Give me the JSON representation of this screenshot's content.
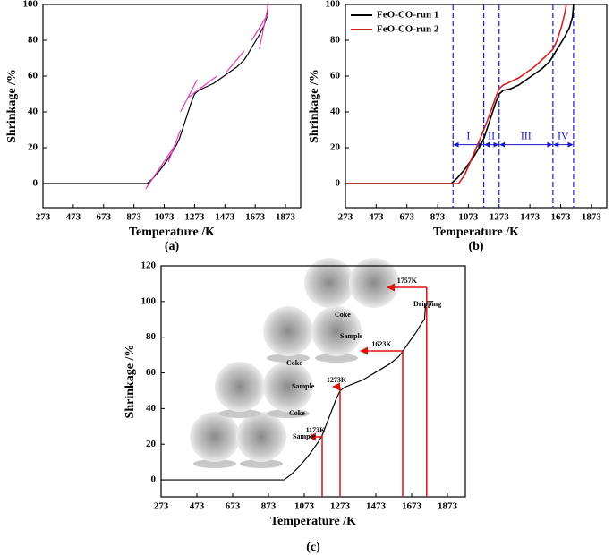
{
  "chart_data": [
    {
      "type": "line",
      "caption": "(a)",
      "x_label": "Temperature /K",
      "y_label": "Shrinkage /%",
      "xlim": [
        273,
        1973
      ],
      "xticks": [
        273,
        473,
        673,
        873,
        1073,
        1273,
        1473,
        1673,
        1873
      ],
      "ylim": [
        -13.5,
        100
      ],
      "yticks": [
        0,
        20,
        40,
        60,
        80,
        100
      ],
      "series": [
        {
          "color": "#000000",
          "x": [
            273,
            960,
            1000,
            1050,
            1100,
            1150,
            1173,
            1200,
            1250,
            1273,
            1300,
            1350,
            1400,
            1450,
            1500,
            1550,
            1600,
            1623,
            1650,
            1700,
            1730,
            1750,
            1757
          ],
          "values": [
            0,
            0,
            3,
            8,
            14,
            21,
            25,
            32,
            45,
            50,
            52,
            54,
            56,
            59,
            62,
            65,
            69,
            72,
            76,
            83,
            88,
            93,
            100
          ]
        },
        {
          "color": "#e040c0",
          "x": [
            950,
            1150
          ],
          "values": [
            -3,
            22
          ]
        },
        {
          "color": "#e040c0",
          "x": [
            1100,
            1180
          ],
          "values": [
            12,
            30
          ]
        },
        {
          "color": "#e040c0",
          "x": [
            1180,
            1290
          ],
          "values": [
            40,
            58
          ]
        },
        {
          "color": "#e040c0",
          "x": [
            1230,
            1420
          ],
          "values": [
            48,
            60
          ]
        },
        {
          "color": "#e040c0",
          "x": [
            1480,
            1600
          ],
          "values": [
            62,
            74
          ]
        },
        {
          "color": "#e040c0",
          "x": [
            1650,
            1760
          ],
          "values": [
            80,
            95
          ]
        },
        {
          "color": "#e040c0",
          "x": [
            1700,
            1760
          ],
          "values": [
            75,
            100
          ]
        }
      ]
    },
    {
      "type": "line",
      "caption": "(b)",
      "x_label": "Temperature /K",
      "y_label": "Shrinkage /%",
      "xlim": [
        273,
        1973
      ],
      "xticks": [
        273,
        473,
        673,
        873,
        1073,
        1273,
        1473,
        1673,
        1873
      ],
      "ylim": [
        -13.5,
        100
      ],
      "yticks": [
        0,
        20,
        40,
        60,
        80,
        100
      ],
      "legend": "upper left",
      "series": [
        {
          "name": "FeO-CO-run 1",
          "color": "#000000",
          "x": [
            273,
            960,
            1000,
            1050,
            1100,
            1150,
            1173,
            1200,
            1250,
            1273,
            1300,
            1350,
            1400,
            1450,
            1500,
            1550,
            1600,
            1623,
            1650,
            1700,
            1730,
            1750,
            1757
          ],
          "values": [
            0,
            0,
            3,
            8,
            14,
            21,
            25,
            32,
            45,
            50,
            52,
            53,
            55,
            58,
            61,
            64,
            68,
            71,
            75,
            82,
            87,
            93,
            100
          ]
        },
        {
          "name": "FeO-CO-run 2",
          "color": "#d42020",
          "x": [
            273,
            1010,
            1050,
            1100,
            1150,
            1200,
            1250,
            1273,
            1300,
            1350,
            1400,
            1450,
            1500,
            1550,
            1600,
            1623,
            1650,
            1680,
            1700,
            1710
          ],
          "values": [
            0,
            0,
            5,
            15,
            25,
            36,
            48,
            53,
            55,
            57,
            59,
            62,
            65,
            69,
            73,
            75,
            80,
            88,
            95,
            100
          ]
        }
      ],
      "vlines": [
        973,
        1173,
        1273,
        1623,
        1757
      ],
      "regions": [
        {
          "label": "I",
          "from": 973,
          "to": 1173
        },
        {
          "label": "II",
          "from": 1173,
          "to": 1273
        },
        {
          "label": "III",
          "from": 1273,
          "to": 1623
        },
        {
          "label": "IV",
          "from": 1623,
          "to": 1757
        }
      ]
    },
    {
      "type": "line",
      "caption": "(c)",
      "x_label": "Temperature /K",
      "y_label": "Shrinkage /%",
      "xlim": [
        273,
        1973
      ],
      "xticks": [
        273,
        473,
        673,
        873,
        1073,
        1273,
        1473,
        1673,
        1873
      ],
      "ylim": [
        -9.5,
        120
      ],
      "yticks": [
        0,
        20,
        40,
        60,
        80,
        100,
        120
      ],
      "series": [
        {
          "color": "#000000",
          "x": [
            273,
            960,
            1000,
            1050,
            1100,
            1150,
            1173,
            1200,
            1250,
            1273,
            1300,
            1350,
            1400,
            1450,
            1500,
            1550,
            1600,
            1623,
            1650,
            1700,
            1730,
            1745,
            1750,
            1757,
            1790
          ],
          "values": [
            0,
            0,
            3,
            8,
            14,
            21,
            25,
            32,
            45,
            50,
            52,
            54,
            56,
            59,
            62,
            65,
            69,
            72,
            76,
            83,
            88,
            90,
            97,
            100,
            100
          ]
        }
      ],
      "annotations": [
        {
          "label": "1173K",
          "x": 1173,
          "y": 25
        },
        {
          "label": "1273K",
          "x": 1273,
          "y": 50
        },
        {
          "label": "1623K",
          "x": 1623,
          "y": 72
        },
        {
          "label": "1757K",
          "x": 1757,
          "y": 100
        }
      ],
      "photo_labels": [
        "Dripping",
        "Coke",
        "Sample",
        "Coke",
        "Sample",
        "Coke",
        "Sample"
      ]
    }
  ]
}
